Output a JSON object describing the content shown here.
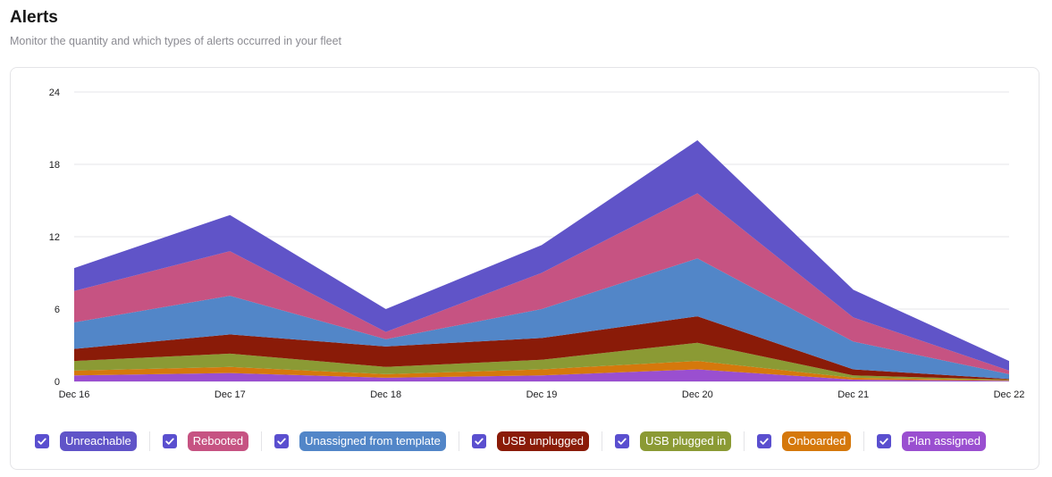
{
  "header": {
    "title": "Alerts",
    "subtitle": "Monitor the quantity and which types of alerts occurred in your fleet"
  },
  "colors": {
    "checkbox": "#5a4fcf",
    "gridline": "#e6e6ea",
    "Unreachable": "#6054c8",
    "Rebooted": "#c65382",
    "Unassigned from template": "#5286c8",
    "USB unplugged": "#8a1b08",
    "USB plugged in": "#8b9a34",
    "Onboarded": "#d5780c",
    "Plan assigned": "#9a4fd0"
  },
  "legend": {
    "items": [
      {
        "label": "Unreachable",
        "checked": true
      },
      {
        "label": "Rebooted",
        "checked": true
      },
      {
        "label": "Unassigned from template",
        "checked": true
      },
      {
        "label": "USB unplugged",
        "checked": true
      },
      {
        "label": "USB plugged in",
        "checked": true
      },
      {
        "label": "Onboarded",
        "checked": true
      },
      {
        "label": "Plan assigned",
        "checked": true
      }
    ]
  },
  "chart_data": {
    "type": "area",
    "stacked": true,
    "categories": [
      "Dec 16",
      "Dec 17",
      "Dec 18",
      "Dec 19",
      "Dec 20",
      "Dec 21",
      "Dec 22"
    ],
    "yticks": [
      "0",
      "6",
      "12",
      "18",
      "24"
    ],
    "ylim": [
      0,
      24
    ],
    "grid": true,
    "legend_position": "bottom",
    "series": [
      {
        "name": "Plan assigned",
        "values": [
          0.5,
          0.7,
          0.3,
          0.5,
          1.0,
          0.15,
          0.05
        ]
      },
      {
        "name": "Onboarded",
        "values": [
          0.4,
          0.5,
          0.3,
          0.5,
          0.7,
          0.15,
          0.05
        ]
      },
      {
        "name": "USB plugged in",
        "values": [
          0.8,
          1.1,
          0.6,
          0.8,
          1.5,
          0.2,
          0.05
        ]
      },
      {
        "name": "USB unplugged",
        "values": [
          1.0,
          1.6,
          1.7,
          1.8,
          2.2,
          0.5,
          0.05
        ]
      },
      {
        "name": "Unassigned from template",
        "values": [
          2.2,
          3.2,
          0.6,
          2.4,
          4.8,
          2.3,
          0.4
        ]
      },
      {
        "name": "Rebooted",
        "values": [
          2.6,
          3.7,
          0.6,
          3.0,
          5.4,
          2.0,
          0.3
        ]
      },
      {
        "name": "Unreachable",
        "values": [
          1.9,
          3.0,
          1.9,
          2.3,
          4.4,
          2.3,
          0.8
        ]
      }
    ]
  }
}
